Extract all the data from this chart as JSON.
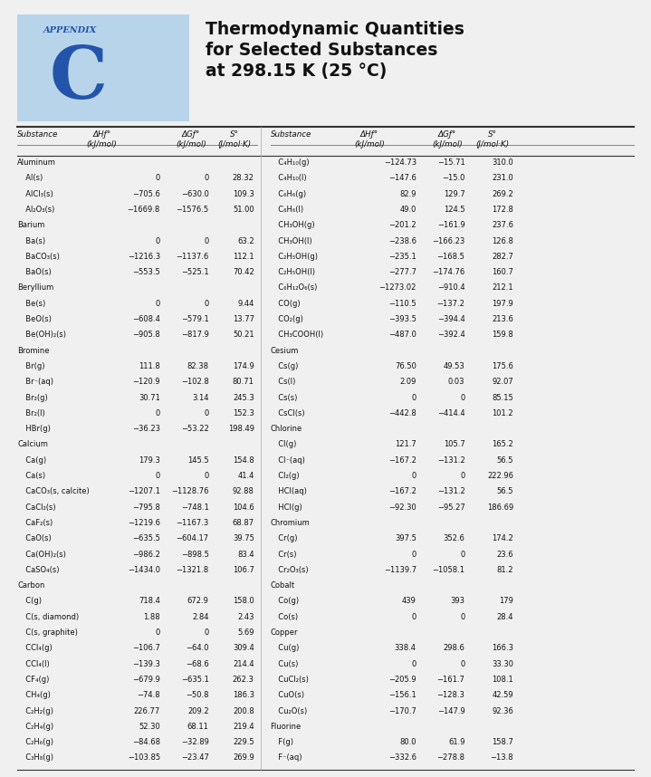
{
  "title_line1": "Thermodynamic Quantities",
  "title_line2": "for Selected Substances",
  "title_line3": "at 298.15 K (25 °C)",
  "appendix_label": "APPENDIX",
  "appendix_letter": "C",
  "appendix_bg": "#b8d4ea",
  "appendix_text_color": "#2255aa",
  "left_data": [
    [
      "Aluminum",
      "",
      "",
      ""
    ],
    [
      "  Al(s)",
      "0",
      "0",
      "28.32"
    ],
    [
      "  AlCl₃(s)",
      "−705.6",
      "−630.0",
      "109.3"
    ],
    [
      "  Al₂O₃(s)",
      "−1669.8",
      "−1576.5",
      "51.00"
    ],
    [
      "Barium",
      "",
      "",
      ""
    ],
    [
      "  Ba(s)",
      "0",
      "0",
      "63.2"
    ],
    [
      "  BaCO₃(s)",
      "−1216.3",
      "−1137.6",
      "112.1"
    ],
    [
      "  BaO(s)",
      "−553.5",
      "−525.1",
      "70.42"
    ],
    [
      "Beryllium",
      "",
      "",
      ""
    ],
    [
      "  Be(s)",
      "0",
      "0",
      "9.44"
    ],
    [
      "  BeO(s)",
      "−608.4",
      "−579.1",
      "13.77"
    ],
    [
      "  Be(OH)₂(s)",
      "−905.8",
      "−817.9",
      "50.21"
    ],
    [
      "Bromine",
      "",
      "",
      ""
    ],
    [
      "  Br(g)",
      "111.8",
      "82.38",
      "174.9"
    ],
    [
      "  Br⁻(aq)",
      "−120.9",
      "−102.8",
      "80.71"
    ],
    [
      "  Br₂(g)",
      "30.71",
      "3.14",
      "245.3"
    ],
    [
      "  Br₂(l)",
      "0",
      "0",
      "152.3"
    ],
    [
      "  HBr(g)",
      "−36.23",
      "−53.22",
      "198.49"
    ],
    [
      "Calcium",
      "",
      "",
      ""
    ],
    [
      "  Ca(g)",
      "179.3",
      "145.5",
      "154.8"
    ],
    [
      "  Ca(s)",
      "0",
      "0",
      "41.4"
    ],
    [
      "  CaCO₃(s, calcite)",
      "−1207.1",
      "−1128.76",
      "92.88"
    ],
    [
      "  CaCl₂(s)",
      "−795.8",
      "−748.1",
      "104.6"
    ],
    [
      "  CaF₂(s)",
      "−1219.6",
      "−1167.3",
      "68.87"
    ],
    [
      "  CaO(s)",
      "−635.5",
      "−604.17",
      "39.75"
    ],
    [
      "  Ca(OH)₂(s)",
      "−986.2",
      "−898.5",
      "83.4"
    ],
    [
      "  CaSO₄(s)",
      "−1434.0",
      "−1321.8",
      "106.7"
    ],
    [
      "Carbon",
      "",
      "",
      ""
    ],
    [
      "  C(g)",
      "718.4",
      "672.9",
      "158.0"
    ],
    [
      "  C(s, diamond)",
      "1.88",
      "2.84",
      "2.43"
    ],
    [
      "  C(s, graphite)",
      "0",
      "0",
      "5.69"
    ],
    [
      "  CCl₄(g)",
      "−106.7",
      "−64.0",
      "309.4"
    ],
    [
      "  CCl₄(l)",
      "−139.3",
      "−68.6",
      "214.4"
    ],
    [
      "  CF₄(g)",
      "−679.9",
      "−635.1",
      "262.3"
    ],
    [
      "  CH₄(g)",
      "−74.8",
      "−50.8",
      "186.3"
    ],
    [
      "  C₂H₂(g)",
      "226.77",
      "209.2",
      "200.8"
    ],
    [
      "  C₂H₄(g)",
      "52.30",
      "68.11",
      "219.4"
    ],
    [
      "  C₂H₆(g)",
      "−84.68",
      "−32.89",
      "229.5"
    ],
    [
      "  C₃H₈(g)",
      "−103.85",
      "−23.47",
      "269.9"
    ]
  ],
  "right_data": [
    [
      "  C₄H₁₀(g)",
      "−124.73",
      "−15.71",
      "310.0"
    ],
    [
      "  C₄H₁₀(l)",
      "−147.6",
      "−15.0",
      "231.0"
    ],
    [
      "  C₆H₆(g)",
      "82.9",
      "129.7",
      "269.2"
    ],
    [
      "  C₆H₆(l)",
      "49.0",
      "124.5",
      "172.8"
    ],
    [
      "  CH₃OH(g)",
      "−201.2",
      "−161.9",
      "237.6"
    ],
    [
      "  CH₃OH(l)",
      "−238.6",
      "−166.23",
      "126.8"
    ],
    [
      "  C₂H₅OH(g)",
      "−235.1",
      "−168.5",
      "282.7"
    ],
    [
      "  C₂H₅OH(l)",
      "−277.7",
      "−174.76",
      "160.7"
    ],
    [
      "  C₆H₁₂O₆(s)",
      "−1273.02",
      "−910.4",
      "212.1"
    ],
    [
      "  CO(g)",
      "−110.5",
      "−137.2",
      "197.9"
    ],
    [
      "  CO₂(g)",
      "−393.5",
      "−394.4",
      "213.6"
    ],
    [
      "  CH₃COOH(l)",
      "−487.0",
      "−392.4",
      "159.8"
    ],
    [
      "Cesium",
      "",
      "",
      ""
    ],
    [
      "  Cs(g)",
      "76.50",
      "49.53",
      "175.6"
    ],
    [
      "  Cs(l)",
      "2.09",
      "0.03",
      "92.07"
    ],
    [
      "  Cs(s)",
      "0",
      "0",
      "85.15"
    ],
    [
      "  CsCl(s)",
      "−442.8",
      "−414.4",
      "101.2"
    ],
    [
      "Chlorine",
      "",
      "",
      ""
    ],
    [
      "  Cl(g)",
      "121.7",
      "105.7",
      "165.2"
    ],
    [
      "  Cl⁻(aq)",
      "−167.2",
      "−131.2",
      "56.5"
    ],
    [
      "  Cl₂(g)",
      "0",
      "0",
      "222.96"
    ],
    [
      "  HCl(aq)",
      "−167.2",
      "−131.2",
      "56.5"
    ],
    [
      "  HCl(g)",
      "−92.30",
      "−95.27",
      "186.69"
    ],
    [
      "Chromium",
      "",
      "",
      ""
    ],
    [
      "  Cr(g)",
      "397.5",
      "352.6",
      "174.2"
    ],
    [
      "  Cr(s)",
      "0",
      "0",
      "23.6"
    ],
    [
      "  Cr₂O₃(s)",
      "−1139.7",
      "−1058.1",
      "81.2"
    ],
    [
      "Cobalt",
      "",
      "",
      ""
    ],
    [
      "  Co(g)",
      "439",
      "393",
      "179"
    ],
    [
      "  Co(s)",
      "0",
      "0",
      "28.4"
    ],
    [
      "Copper",
      "",
      "",
      ""
    ],
    [
      "  Cu(g)",
      "338.4",
      "298.6",
      "166.3"
    ],
    [
      "  Cu(s)",
      "0",
      "0",
      "33.30"
    ],
    [
      "  CuCl₂(s)",
      "−205.9",
      "−161.7",
      "108.1"
    ],
    [
      "  CuO(s)",
      "−156.1",
      "−128.3",
      "42.59"
    ],
    [
      "  Cu₂O(s)",
      "−170.7",
      "−147.9",
      "92.36"
    ],
    [
      "Fluorine",
      "",
      "",
      ""
    ],
    [
      "  F(g)",
      "80.0",
      "61.9",
      "158.7"
    ],
    [
      "  F⁻(aq)",
      "−332.6",
      "−278.8",
      "−13.8"
    ]
  ]
}
